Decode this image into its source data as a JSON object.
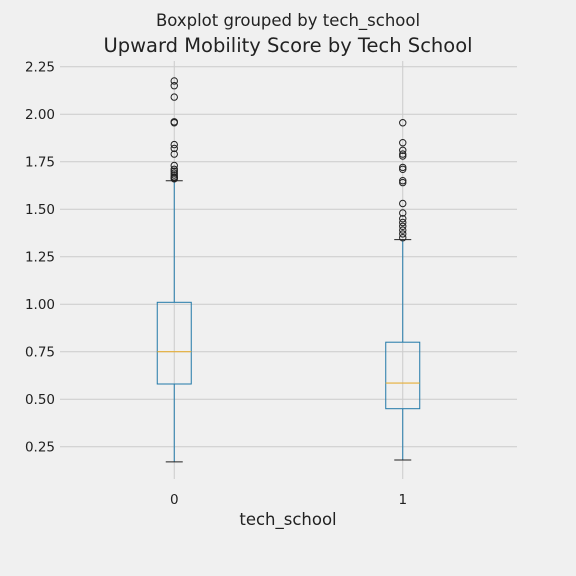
{
  "chart_data": {
    "type": "boxplot",
    "suptitle": "Boxplot grouped by tech_school",
    "title": "Upward Mobility Score by Tech School",
    "xlabel": "tech_school",
    "ylabel": "",
    "ylim": [
      0.08,
      2.28
    ],
    "yticks": [
      "0.25",
      "0.50",
      "0.75",
      "1.00",
      "1.25",
      "1.50",
      "1.75",
      "2.00",
      "2.25"
    ],
    "grid": true,
    "categories": [
      "0",
      "1"
    ],
    "boxes": [
      {
        "category": "0",
        "whisker_low": 0.17,
        "q1": 0.58,
        "median": 0.75,
        "q3": 1.01,
        "whisker_high": 1.65,
        "outliers": [
          1.66,
          1.665,
          1.67,
          1.68,
          1.69,
          1.7,
          1.71,
          1.73,
          1.79,
          1.82,
          1.84,
          1.955,
          1.96,
          2.09,
          2.15,
          2.175
        ]
      },
      {
        "category": "1",
        "whisker_low": 0.18,
        "q1": 0.45,
        "median": 0.585,
        "q3": 0.8,
        "whisker_high": 1.34,
        "outliers": [
          1.35,
          1.37,
          1.39,
          1.41,
          1.43,
          1.45,
          1.48,
          1.53,
          1.64,
          1.65,
          1.71,
          1.72,
          1.78,
          1.79,
          1.81,
          1.85,
          1.955
        ]
      }
    ],
    "colors": {
      "box": "#2079a8",
      "median": "#e5ae38",
      "whisker_cap": "#222222",
      "grid": "#cbcbcb",
      "background": "#f0f0f0"
    }
  }
}
